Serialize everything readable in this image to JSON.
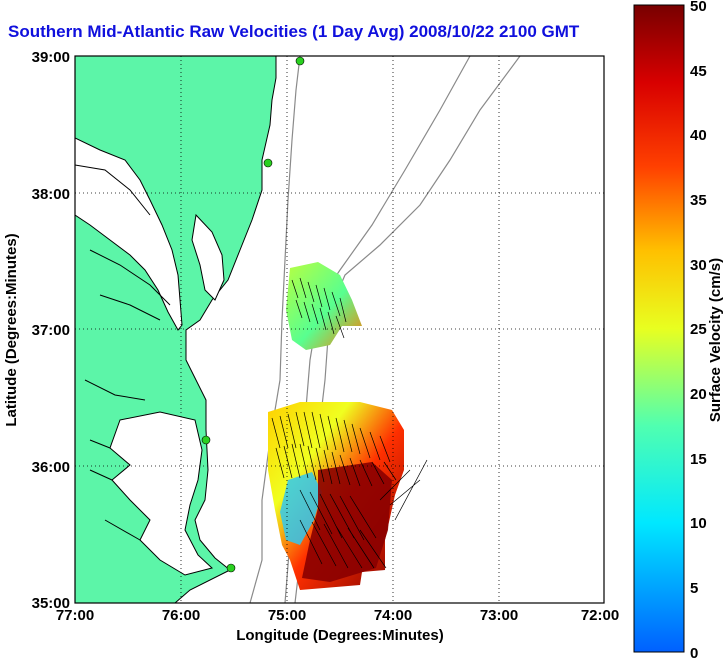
{
  "title": "Southern Mid-Atlantic Raw Velocities (1 Day Avg) 2008/10/22 2100 GMT",
  "xlabel": "Longitude (Degrees:Minutes)",
  "ylabel": "Latitude (Degrees:Minutes)",
  "colorbar_label": "Surface Velocity (cm/s)",
  "x_ticks": [
    "77:00",
    "76:00",
    "75:00",
    "74:00",
    "73:00",
    "72:00"
  ],
  "y_ticks": [
    "39:00",
    "38:00",
    "37:00",
    "36:00",
    "35:00"
  ],
  "colorbar_ticks": [
    "50",
    "45",
    "40",
    "35",
    "30",
    "25",
    "20",
    "15",
    "10",
    "5",
    "0"
  ],
  "colors": {
    "land": "#5cf5a8",
    "water": "#ffffff",
    "title": "#1010dd",
    "coastline": "#000000",
    "bathymetry": "#8a8a8a",
    "grid": "#000000"
  },
  "map_extent": {
    "lon_west": -77,
    "lon_east": -72,
    "lat_south": 35,
    "lat_north": 39
  },
  "colorbar_range": [
    0,
    50
  ],
  "grid": true
}
